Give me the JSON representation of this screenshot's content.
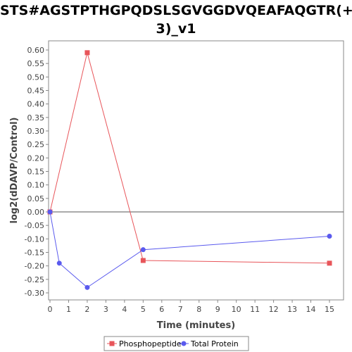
{
  "chart_data": {
    "type": "line",
    "title_line1": "STS#AGSTPTHGPQDSLSGVGGDVQEAFAQGTR(+",
    "title_line2": "3)_v1",
    "xlabel": "Time (minutes)",
    "ylabel": "log2(dDAVP/Control)",
    "xlim": [
      0,
      16
    ],
    "ylim": [
      -0.33,
      0.63
    ],
    "x_ticks": [
      0,
      1,
      2,
      3,
      4,
      5,
      6,
      7,
      8,
      9,
      10,
      11,
      12,
      13,
      14,
      15
    ],
    "y_ticks": [
      0.6,
      0.55,
      0.5,
      0.45,
      0.4,
      0.35,
      0.3,
      0.25,
      0.2,
      0.15,
      0.1,
      0.05,
      0.0,
      -0.05,
      -0.1,
      -0.15,
      -0.2,
      -0.25,
      -0.3
    ],
    "grid": false,
    "legend_position": "bottom",
    "series": [
      {
        "name": "Phosphopeptide",
        "color": "#e8555a",
        "marker": "square",
        "x": [
          0,
          2,
          5,
          15
        ],
        "y": [
          0.0,
          0.59,
          -0.18,
          -0.19
        ]
      },
      {
        "name": "Total Protein",
        "color": "#5a5aee",
        "marker": "circle",
        "x": [
          0,
          0.5,
          2,
          5,
          15
        ],
        "y": [
          0.0,
          -0.19,
          -0.28,
          -0.14,
          -0.09
        ]
      }
    ]
  }
}
